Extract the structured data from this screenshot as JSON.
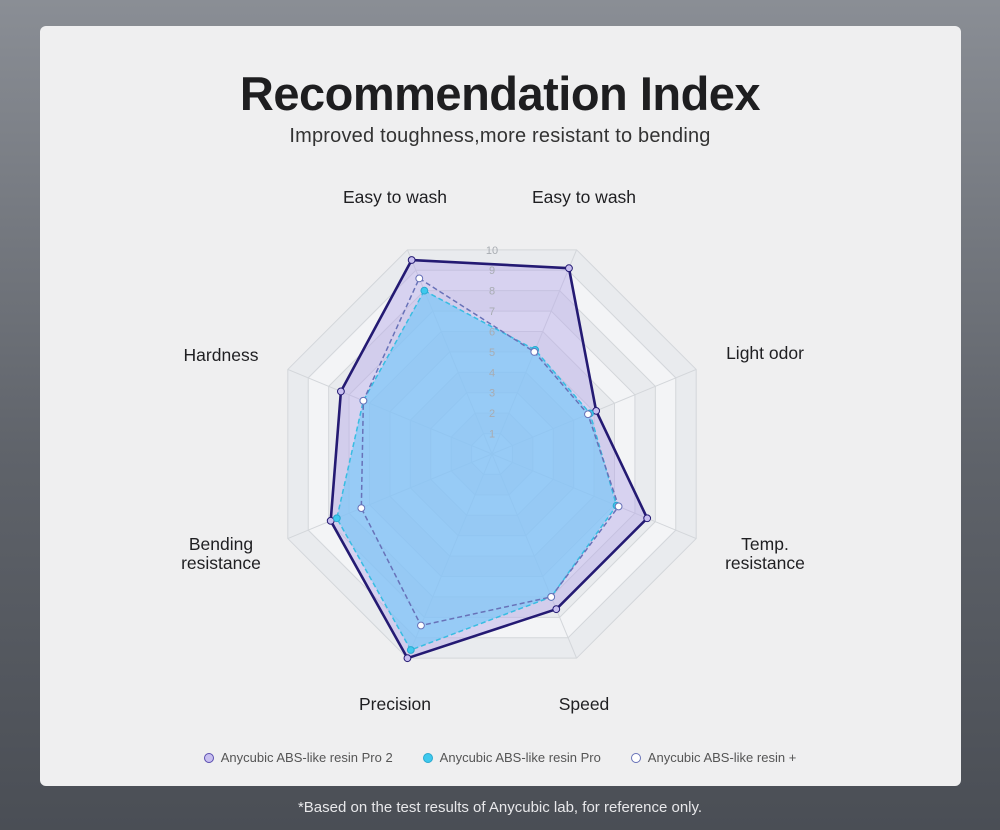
{
  "header": {
    "title": "Recommendation Index",
    "subtitle": "Improved toughness,more resistant to bending"
  },
  "footnote": "*Based on the test results of Anycubic lab, for reference only.",
  "chart_data": {
    "type": "radar",
    "axes": [
      "Easy to wash",
      "Light odor",
      "Temp. resistance",
      "Speed",
      "Precision",
      "Bending resistance",
      "Hardness",
      "Easy to wash"
    ],
    "ticks": [
      "1",
      "2",
      "3",
      "4",
      "5",
      "6",
      "7",
      "8",
      "9",
      "10"
    ],
    "range": [
      0,
      10
    ],
    "grid": true,
    "series": [
      {
        "name": "Anycubic ABS-like resin Pro 2",
        "values": [
          9.5,
          9.1,
          5.1,
          7.6,
          7.6,
          10.0,
          7.9,
          7.4
        ],
        "color": "#241a73",
        "fill": "#b6a8e8",
        "marker_fill": "#c8bff0",
        "line": "solid"
      },
      {
        "name": "Anycubic ABS-like resin Pro",
        "values": [
          8.0,
          5.1,
          4.8,
          6.1,
          7.0,
          9.6,
          7.6,
          6.3
        ],
        "color": "#38bde2",
        "fill": "#7cc8f8",
        "marker_fill": "#3ec9ee",
        "line": "dashed"
      },
      {
        "name": "Anycubic ABS-like resin +",
        "values": [
          8.6,
          5.0,
          4.7,
          6.2,
          7.0,
          8.4,
          6.4,
          6.3
        ],
        "color": "#6872b8",
        "fill": "none",
        "marker_fill": "#ffffff",
        "line": "dashed"
      }
    ]
  }
}
